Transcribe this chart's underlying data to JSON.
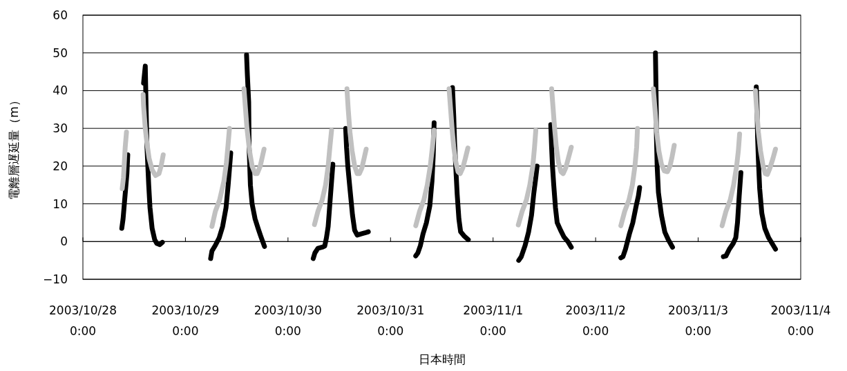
{
  "chart_data": {
    "type": "line",
    "xlabel": "日本時間",
    "ylabel": "電離層遅延量（m）",
    "xlim": [
      "2003-10-28",
      "2003-11-04"
    ],
    "xticks": [
      {
        "value": "2003-10-28",
        "label": "2003/10/28 0:00"
      },
      {
        "value": "2003-10-29",
        "label": "2003/10/29 0:00"
      },
      {
        "value": "2003-10-30",
        "label": "2003/10/30 0:00"
      },
      {
        "value": "2003-10-31",
        "label": "2003/10/31 0:00"
      },
      {
        "value": "2003-11-01",
        "label": "2003/11/1 0:00"
      },
      {
        "value": "2003-11-02",
        "label": "2003/11/2 0:00"
      },
      {
        "value": "2003-11-03",
        "label": "2003/11/3 0:00"
      },
      {
        "value": "2003-11-04",
        "label": "2003/11/4 0:00"
      }
    ],
    "ylim": [
      -10,
      60
    ],
    "yticks": [
      -10,
      0,
      10,
      20,
      30,
      40,
      50,
      60
    ],
    "grid": "y",
    "line_style": "solid",
    "series": [
      {
        "color": "#000000",
        "x": [
          "2003-10-28T09:06",
          "2003-10-28T09:24",
          "2003-10-28T09:42",
          "2003-10-28T10:00",
          "2003-10-28T10:18",
          "2003-10-28T10:30",
          "2003-10-28T14:12",
          "2003-10-28T14:36",
          "2003-10-28T14:48",
          "2003-10-28T15:00",
          "2003-10-28T15:24",
          "2003-10-28T15:42",
          "2003-10-28T16:12",
          "2003-10-28T16:48",
          "2003-10-28T17:18",
          "2003-10-28T18:00",
          "2003-10-28T18:36",
          "2003-10-29T05:54",
          "2003-10-29T06:12",
          "2003-10-29T07:00",
          "2003-10-29T07:54",
          "2003-10-29T08:42",
          "2003-10-29T09:30",
          "2003-10-29T10:00",
          "2003-10-29T10:36",
          "2003-10-29T14:18",
          "2003-10-29T14:30",
          "2003-10-29T14:48",
          "2003-10-29T14:54",
          "2003-10-29T15:12",
          "2003-10-29T15:36",
          "2003-10-29T16:18",
          "2003-10-29T17:00",
          "2003-10-29T17:36",
          "2003-10-29T18:30",
          "2003-10-30T05:54",
          "2003-10-30T06:18",
          "2003-10-30T07:00",
          "2003-10-30T08:00",
          "2003-10-30T08:36",
          "2003-10-30T09:00",
          "2003-10-30T09:24",
          "2003-10-30T09:48",
          "2003-10-30T10:12",
          "2003-10-30T10:30",
          "2003-10-30T13:30",
          "2003-10-30T13:42",
          "2003-10-30T14:00",
          "2003-10-30T14:30",
          "2003-10-30T15:06",
          "2003-10-30T15:36",
          "2003-10-30T16:12",
          "2003-10-30T17:00",
          "2003-10-30T18:00",
          "2003-10-30T18:48",
          "2003-10-31T05:54",
          "2003-10-31T06:24",
          "2003-10-31T07:00",
          "2003-10-31T07:36",
          "2003-10-31T08:24",
          "2003-10-31T09:12",
          "2003-10-31T09:42",
          "2003-10-31T10:00",
          "2003-10-31T10:12",
          "2003-10-31T14:30",
          "2003-10-31T14:48",
          "2003-10-31T15:00",
          "2003-10-31T15:18",
          "2003-10-31T15:36",
          "2003-10-31T16:00",
          "2003-10-31T16:24",
          "2003-10-31T17:12",
          "2003-10-31T18:12",
          "2003-11-01T06:00",
          "2003-11-01T06:36",
          "2003-11-01T07:30",
          "2003-11-01T08:18",
          "2003-11-01T09:00",
          "2003-11-01T09:30",
          "2003-11-01T10:00",
          "2003-11-01T10:18",
          "2003-11-01T13:30",
          "2003-11-01T13:42",
          "2003-11-01T13:54",
          "2003-11-01T14:12",
          "2003-11-01T14:36",
          "2003-11-01T15:00",
          "2003-11-01T15:48",
          "2003-11-01T16:36",
          "2003-11-01T17:30",
          "2003-11-01T18:18",
          "2003-11-02T05:54",
          "2003-11-02T06:24",
          "2003-11-02T07:00",
          "2003-11-02T07:54",
          "2003-11-02T08:42",
          "2003-11-02T09:30",
          "2003-11-02T10:00",
          "2003-11-02T10:18",
          "2003-11-02T14:00",
          "2003-11-02T14:06",
          "2003-11-02T14:12",
          "2003-11-02T14:14",
          "2003-11-02T14:24",
          "2003-11-02T14:42",
          "2003-11-02T15:24",
          "2003-11-02T16:12",
          "2003-11-02T17:00",
          "2003-11-02T18:00",
          "2003-11-03T05:54",
          "2003-11-03T06:30",
          "2003-11-03T07:18",
          "2003-11-03T08:12",
          "2003-11-03T08:48",
          "2003-11-03T09:12",
          "2003-11-03T09:36",
          "2003-11-03T10:00",
          "2003-11-03T13:36",
          "2003-11-03T13:48",
          "2003-11-03T13:54",
          "2003-11-03T14:06",
          "2003-11-03T14:24",
          "2003-11-03T14:54",
          "2003-11-03T15:36",
          "2003-11-03T16:30",
          "2003-11-03T17:18",
          "2003-11-03T18:06"
        ],
        "values": [
          3.5,
          6,
          10,
          14,
          18,
          23,
          42,
          46.5,
          35,
          25,
          15,
          9,
          3.5,
          0.5,
          -0.5,
          -0.8,
          -0.2,
          -4.5,
          -2.5,
          -1,
          1,
          4,
          9,
          15,
          23.5,
          49.5,
          44,
          37,
          25,
          15,
          10,
          6,
          3.5,
          1.5,
          -1.3,
          -4.5,
          -3,
          -1.8,
          -1.5,
          -1.2,
          1,
          4,
          10,
          16,
          20.5,
          30,
          25,
          20,
          14,
          7,
          3,
          1.7,
          2,
          2.3,
          2.6,
          -3.8,
          -3,
          -1,
          2,
          5,
          9.5,
          16,
          23,
          31.5,
          40.8,
          33,
          26,
          19,
          12.5,
          6,
          2.6,
          1.5,
          0.5,
          -5,
          -4,
          -1,
          2.5,
          7,
          12.5,
          17,
          20,
          31,
          25,
          20,
          15,
          9,
          5,
          3,
          1.2,
          0,
          -1.5,
          -4.3,
          -4,
          -2,
          2,
          5,
          9.5,
          12,
          14.3,
          50,
          43,
          35,
          28,
          20,
          13,
          7,
          2.5,
          0.5,
          -1.5,
          -4,
          -3.8,
          -2,
          -0.5,
          1,
          5,
          12,
          18.3,
          41,
          35,
          28,
          21.5,
          14,
          7.5,
          3.5,
          1,
          -0.5,
          -2
        ]
      },
      {
        "color": "#c0c0c0",
        "x": [
          "2003-10-28T09:12",
          "2003-10-28T09:30",
          "2003-10-28T09:42",
          "2003-10-28T09:54",
          "2003-10-28T10:12",
          "2003-10-28T14:06",
          "2003-10-28T14:12",
          "2003-10-28T14:36",
          "2003-10-28T15:00",
          "2003-10-28T15:30",
          "2003-10-28T16:12",
          "2003-10-28T17:00",
          "2003-10-28T17:48",
          "2003-10-28T18:18",
          "2003-10-28T18:48",
          "2003-10-29T06:12",
          "2003-10-29T07:00",
          "2003-10-29T08:00",
          "2003-10-29T09:00",
          "2003-10-29T09:36",
          "2003-10-29T10:00",
          "2003-10-29T10:18",
          "2003-10-29T13:42",
          "2003-10-29T14:00",
          "2003-10-29T14:24",
          "2003-10-29T15:00",
          "2003-10-29T15:36",
          "2003-10-29T16:18",
          "2003-10-29T16:48",
          "2003-10-29T17:30",
          "2003-10-29T18:00",
          "2003-10-29T18:24",
          "2003-10-30T06:12",
          "2003-10-30T07:00",
          "2003-10-30T08:00",
          "2003-10-30T08:48",
          "2003-10-30T09:24",
          "2003-10-30T09:48",
          "2003-10-30T10:12",
          "2003-10-30T13:48",
          "2003-10-30T14:06",
          "2003-10-30T14:30",
          "2003-10-30T15:00",
          "2003-10-30T15:36",
          "2003-10-30T16:12",
          "2003-10-30T16:42",
          "2003-10-30T17:18",
          "2003-10-30T17:48",
          "2003-10-30T18:18",
          "2003-10-31T05:54",
          "2003-10-31T06:48",
          "2003-10-31T07:48",
          "2003-10-31T08:36",
          "2003-10-31T09:18",
          "2003-10-31T09:48",
          "2003-10-31T10:12",
          "2003-10-31T13:42",
          "2003-10-31T14:00",
          "2003-10-31T14:24",
          "2003-10-31T14:48",
          "2003-10-31T15:18",
          "2003-10-31T15:48",
          "2003-10-31T16:18",
          "2003-10-31T16:54",
          "2003-10-31T17:30",
          "2003-10-31T18:06",
          "2003-11-01T05:54",
          "2003-11-01T06:48",
          "2003-11-01T07:48",
          "2003-11-01T08:36",
          "2003-11-01T09:18",
          "2003-11-01T09:42",
          "2003-11-01T10:00",
          "2003-11-01T13:42",
          "2003-11-01T14:00",
          "2003-11-01T14:24",
          "2003-11-01T14:48",
          "2003-11-01T15:18",
          "2003-11-01T15:54",
          "2003-11-01T16:24",
          "2003-11-01T17:00",
          "2003-11-01T17:36",
          "2003-11-01T18:18",
          "2003-11-02T05:54",
          "2003-11-02T06:48",
          "2003-11-02T07:48",
          "2003-11-02T08:36",
          "2003-11-02T09:12",
          "2003-11-02T09:36",
          "2003-11-02T09:48",
          "2003-11-02T13:30",
          "2003-11-02T13:54",
          "2003-11-02T14:18",
          "2003-11-02T14:48",
          "2003-11-02T15:24",
          "2003-11-02T16:06",
          "2003-11-02T16:48",
          "2003-11-02T17:24",
          "2003-11-02T17:54",
          "2003-11-02T18:24",
          "2003-11-03T05:36",
          "2003-11-03T06:30",
          "2003-11-03T07:30",
          "2003-11-03T08:18",
          "2003-11-03T09:00",
          "2003-11-03T09:24",
          "2003-11-03T09:42",
          "2003-11-03T13:24",
          "2003-11-03T13:42",
          "2003-11-03T14:06",
          "2003-11-03T14:36",
          "2003-11-03T15:12",
          "2003-11-03T15:42",
          "2003-11-03T16:12",
          "2003-11-03T16:48",
          "2003-11-03T17:30",
          "2003-11-03T18:06"
        ],
        "values": [
          14,
          17,
          21,
          25,
          29,
          39,
          36,
          30,
          26,
          22,
          19,
          17.5,
          18,
          20,
          23,
          4,
          8,
          11,
          16,
          21,
          26,
          30,
          40.5,
          36,
          30,
          24,
          20,
          18,
          18,
          20,
          22.5,
          24.5,
          4.5,
          8,
          11,
          15,
          20,
          25,
          29.5,
          40.5,
          35,
          29,
          24,
          20,
          18,
          18,
          19.5,
          22,
          24.5,
          4.2,
          8,
          11,
          15,
          20,
          25,
          29.5,
          40.5,
          36,
          30,
          25,
          21,
          18.5,
          18,
          19.5,
          22,
          24.8,
          4.4,
          8,
          11,
          15,
          20,
          25,
          29.5,
          40.5,
          36,
          30,
          25,
          21,
          18.5,
          18,
          19.5,
          22,
          25,
          4.2,
          8,
          11,
          15,
          20,
          25,
          30,
          40.5,
          35,
          29,
          24,
          20.5,
          18.7,
          18.5,
          20,
          22.5,
          25.5,
          4.2,
          8,
          11,
          15,
          20,
          24,
          28.5,
          40,
          35,
          29,
          24,
          20,
          18,
          17.8,
          19.5,
          22,
          24.5
        ]
      }
    ]
  }
}
